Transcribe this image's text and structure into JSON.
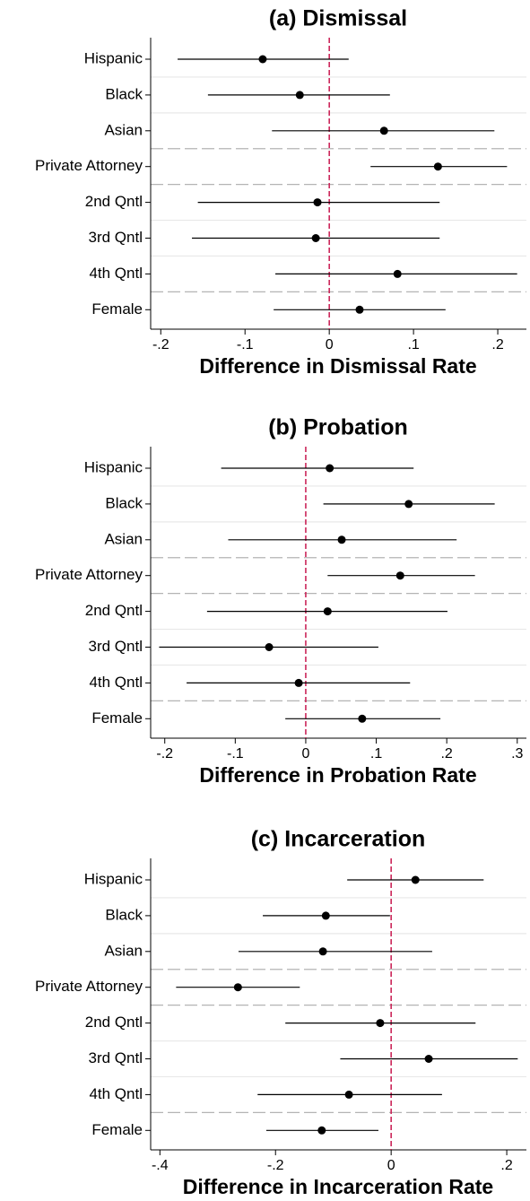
{
  "chart_data": [
    {
      "type": "coefplot",
      "title": "(a) Dismissal",
      "x_label": "Difference in Dismissal Rate",
      "categories": [
        "Hispanic",
        "Black",
        "Asian",
        "Private Attorney",
        "2nd Qntl",
        "3rd Qntl",
        "4th Qntl",
        "Female"
      ],
      "values": [
        -0.079,
        -0.035,
        0.065,
        0.129,
        -0.014,
        -0.016,
        0.081,
        0.036
      ],
      "ci_low": [
        -0.18,
        -0.144,
        -0.068,
        0.049,
        -0.156,
        -0.163,
        -0.064,
        -0.066
      ],
      "ci_high": [
        0.023,
        0.072,
        0.196,
        0.211,
        0.131,
        0.131,
        0.223,
        0.138
      ],
      "xlim": [
        -0.212,
        0.234
      ],
      "xticks": [
        {
          "value": -0.2,
          "label": "-.2"
        },
        {
          "value": -0.1,
          "label": "-.1"
        },
        0,
        {
          "value": 0.1,
          "label": ".1"
        },
        {
          "value": 0.2,
          "label": ".2"
        }
      ],
      "ref_line": 0,
      "color": "#000000",
      "ref_color": "#c8184f"
    },
    {
      "type": "coefplot",
      "title": "(b) Probation",
      "x_label": "Difference in Probation Rate",
      "categories": [
        "Hispanic",
        "Black",
        "Asian",
        "Private Attorney",
        "2nd Qntl",
        "3rd Qntl",
        "4th Qntl",
        "Female"
      ],
      "values": [
        0.034,
        0.146,
        0.051,
        0.134,
        0.031,
        -0.052,
        -0.01,
        0.08
      ],
      "ci_low": [
        -0.12,
        0.025,
        -0.11,
        0.031,
        -0.14,
        -0.208,
        -0.169,
        -0.029
      ],
      "ci_high": [
        0.153,
        0.268,
        0.214,
        0.24,
        0.201,
        0.103,
        0.148,
        0.191
      ],
      "xlim": [
        -0.22,
        0.313
      ],
      "xticks": [
        {
          "value": -0.2,
          "label": "-.2"
        },
        {
          "value": -0.1,
          "label": "-.1"
        },
        0,
        {
          "value": 0.1,
          "label": ".1"
        },
        {
          "value": 0.2,
          "label": ".2"
        },
        {
          "value": 0.3,
          "label": ".3"
        }
      ],
      "ref_line": 0,
      "color": "#000000",
      "ref_color": "#c8184f"
    },
    {
      "type": "coefplot",
      "title": "(c) Incarceration",
      "x_label": "Difference in Incarceration Rate",
      "categories": [
        "Hispanic",
        "Black",
        "Asian",
        "Private Attorney",
        "2nd Qntl",
        "3rd Qntl",
        "4th Qntl",
        "Female"
      ],
      "values": [
        0.042,
        -0.113,
        -0.118,
        -0.265,
        -0.019,
        0.065,
        -0.073,
        -0.12
      ],
      "ci_low": [
        -0.076,
        -0.222,
        -0.264,
        -0.372,
        -0.183,
        -0.088,
        -0.231,
        -0.216
      ],
      "ci_high": [
        0.16,
        -0.002,
        0.071,
        -0.158,
        0.146,
        0.219,
        0.088,
        -0.022
      ],
      "xlim": [
        -0.416,
        0.234
      ],
      "xticks": [
        {
          "value": -0.4,
          "label": "-.4"
        },
        {
          "value": -0.2,
          "label": "-.2"
        },
        0,
        {
          "value": 0.2,
          "label": ".2"
        }
      ],
      "ref_line": 0,
      "color": "#000000",
      "ref_color": "#c8184f"
    }
  ]
}
